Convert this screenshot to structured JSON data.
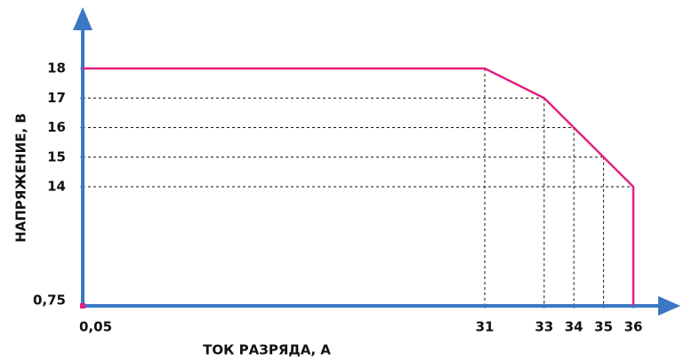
{
  "chart_data": {
    "type": "line",
    "xlabel": "ТОК РАЗРЯДА, А",
    "ylabel": "НАПРЯЖЕНИЕ, В",
    "x": [
      0.05,
      31,
      33,
      34,
      35,
      36,
      36
    ],
    "series": [
      {
        "color": "#e3217f",
        "values": [
          18,
          18,
          17,
          16,
          15,
          14,
          0.75
        ]
      }
    ],
    "xlim": [
      0.05,
      36
    ],
    "ylim": [
      0.75,
      18
    ],
    "xticks": [
      {
        "value": 0.05,
        "label": "0,05"
      },
      31,
      33,
      34,
      35,
      36
    ],
    "yticks": [
      {
        "value": 0.75,
        "label": "0,75"
      },
      14,
      15,
      16,
      17,
      18
    ],
    "axis_color": "#3b78c4",
    "grid": true
  }
}
